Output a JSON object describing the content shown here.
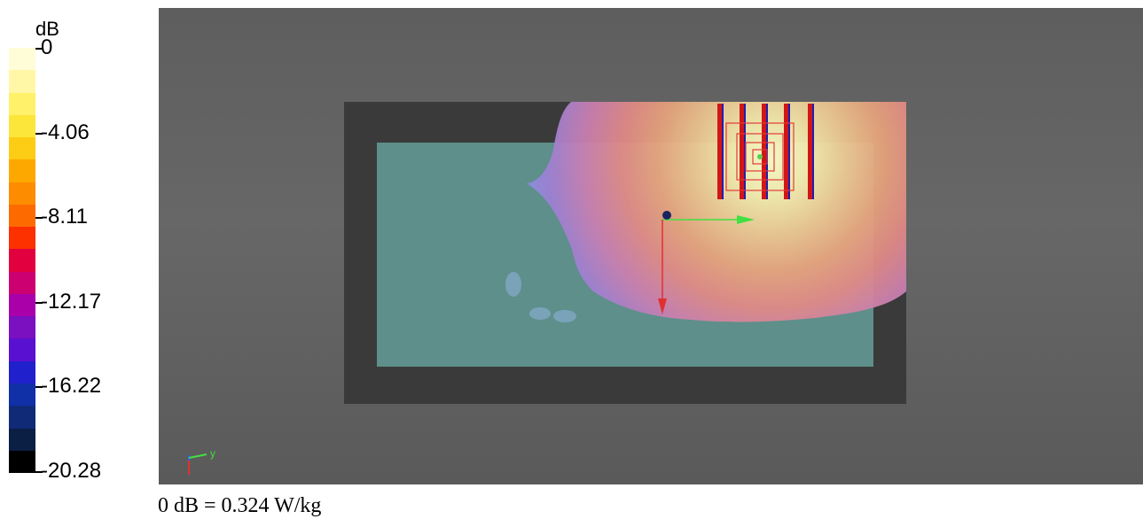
{
  "legend": {
    "unit": "dB",
    "ticks": [
      "0",
      "-4.06",
      "-8.11",
      "-12.17",
      "-16.22",
      "-20.28"
    ],
    "colors": [
      "#fffdd8",
      "#fff7a6",
      "#fff16a",
      "#fde63a",
      "#fdcc14",
      "#fda800",
      "#fd8c00",
      "#fd6a00",
      "#fd3000",
      "#e3003e",
      "#cc0070",
      "#aa00aa",
      "#7a10bf",
      "#5a10d0",
      "#2020cc",
      "#1030a8",
      "#102a78",
      "#0b1f45",
      "#000000"
    ]
  },
  "axes": {
    "y_label": "y"
  },
  "caption": "0 dB = 0.324 W/kg"
}
